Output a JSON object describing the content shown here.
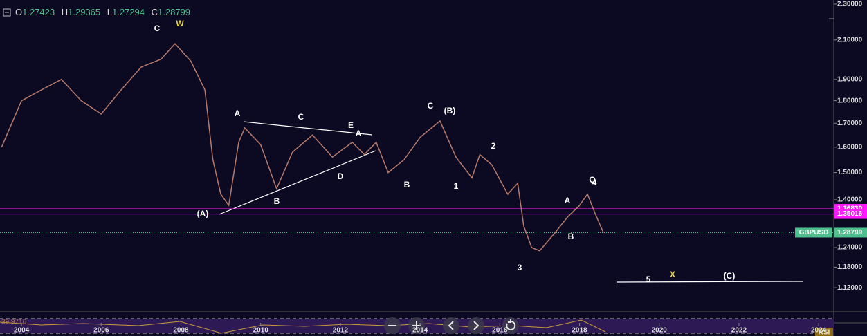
{
  "header": {
    "o_label": "O",
    "o": "1.27423",
    "h_label": "H",
    "h": "1.29365",
    "l_label": "L",
    "l": "1.27294",
    "c_label": "C",
    "c": "1.28799"
  },
  "chart_data": {
    "type": "line",
    "name": "GBPUSD",
    "color": "#b87a6a",
    "log_scale": true,
    "x": [
      2003.5,
      2004.0,
      2004.5,
      2005.0,
      2005.5,
      2006.0,
      2006.5,
      2007.0,
      2007.5,
      2007.85,
      2008.25,
      2008.6,
      2008.8,
      2009.0,
      2009.2,
      2009.45,
      2009.6,
      2010.0,
      2010.4,
      2010.8,
      2011.3,
      2011.8,
      2012.3,
      2012.6,
      2012.9,
      2013.2,
      2013.6,
      2014.0,
      2014.5,
      2014.9,
      2015.3,
      2015.5,
      2015.8,
      2016.2,
      2016.45,
      2016.6,
      2016.8,
      2017.0,
      2017.4,
      2017.7,
      2018.0,
      2018.2,
      2018.4,
      2018.6
    ],
    "values": [
      1.6,
      1.8,
      1.85,
      1.9,
      1.8,
      1.74,
      1.85,
      1.96,
      2.0,
      2.08,
      1.99,
      1.85,
      1.55,
      1.42,
      1.38,
      1.62,
      1.68,
      1.61,
      1.44,
      1.58,
      1.65,
      1.56,
      1.62,
      1.57,
      1.62,
      1.5,
      1.55,
      1.64,
      1.71,
      1.56,
      1.48,
      1.57,
      1.53,
      1.42,
      1.46,
      1.31,
      1.24,
      1.23,
      1.29,
      1.34,
      1.38,
      1.42,
      1.35,
      1.288
    ],
    "xlim": [
      2003.46,
      2024.38
    ],
    "xticks": [
      2004,
      2006,
      2008,
      2010,
      2012,
      2014,
      2016,
      2018,
      2020,
      2022,
      2024
    ],
    "ylim": [
      1.0554,
      2.324
    ],
    "yticks": [
      {
        "value": 2.3,
        "label": "2.30000"
      },
      {
        "value": 2.1,
        "label": "2.10000"
      },
      {
        "value": 1.9,
        "label": "1.90000"
      },
      {
        "value": 1.8,
        "label": "1.80000"
      },
      {
        "value": 1.7,
        "label": "1.70000"
      },
      {
        "value": 1.6,
        "label": "1.60000"
      },
      {
        "value": 1.5,
        "label": "1.50000"
      },
      {
        "value": 1.4,
        "label": "1.40000"
      },
      {
        "value": 1.24,
        "label": "1.24000"
      },
      {
        "value": 1.18,
        "label": "1.18000"
      },
      {
        "value": 1.12,
        "label": "1.12000"
      }
    ],
    "levels": [
      {
        "value": 1.3683,
        "label": "1.36830",
        "color": "#ff1aff"
      },
      {
        "value": 1.35016,
        "label": "1.35016",
        "color": "#ff1aff"
      }
    ],
    "price_line": {
      "value": 1.28799,
      "label": "1.28799",
      "color": "#4fc08d"
    },
    "annotations": [
      {
        "text": "C",
        "color": "#ffffff"
      },
      {
        "text": "W",
        "color": "#e8d84a"
      },
      {
        "text": "A",
        "color": "#ffffff"
      },
      {
        "text": "C",
        "color": "#ffffff"
      },
      {
        "text": "E",
        "color": "#ffffff"
      },
      {
        "text": "A",
        "color": "#ffffff"
      },
      {
        "text": "D",
        "color": "#ffffff"
      },
      {
        "text": "B",
        "color": "#ffffff"
      },
      {
        "text": "(A)",
        "color": "#ffffff"
      },
      {
        "text": "C",
        "color": "#ffffff"
      },
      {
        "text": "(B)",
        "color": "#ffffff"
      },
      {
        "text": "B",
        "color": "#ffffff"
      },
      {
        "text": "1",
        "color": "#ffffff"
      },
      {
        "text": "2",
        "color": "#ffffff"
      },
      {
        "text": "A",
        "color": "#ffffff"
      },
      {
        "text": "B",
        "color": "#ffffff"
      },
      {
        "text": "3",
        "color": "#ffffff"
      },
      {
        "text": "O",
        "color": "#ffffff"
      },
      {
        "text": "4",
        "color": "#ffffff"
      },
      {
        "text": "5",
        "color": "#ffffff"
      },
      {
        "text": "X",
        "color": "#e8d84a"
      },
      {
        "text": "(C)",
        "color": "#ffffff"
      }
    ],
    "rsi_label": "RSI",
    "rsi_value": "39.9716"
  }
}
